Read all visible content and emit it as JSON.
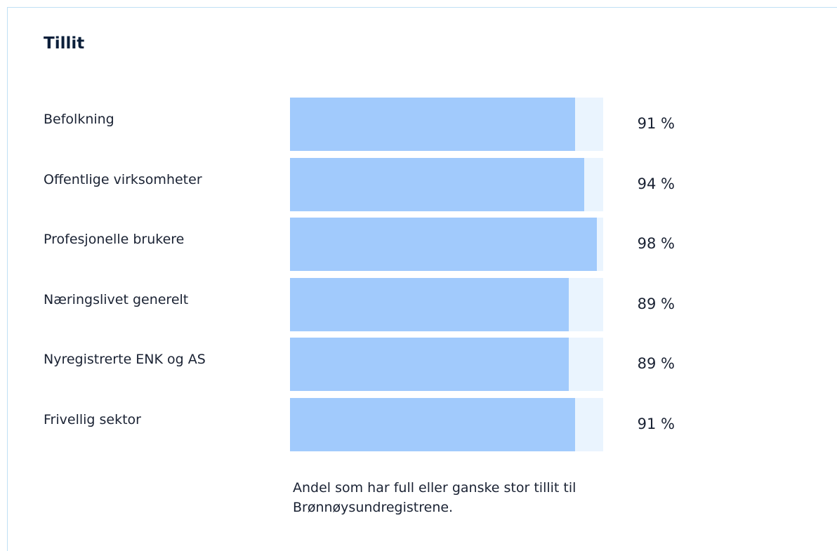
{
  "chart_data": {
    "type": "bar",
    "title": "Tillit",
    "categories": [
      "Befolkning",
      "Offentlige virksomheter",
      "Profesjonelle brukere",
      "Næringslivet generelt",
      "Nyregistrerte ENK og AS",
      "Frivellig sektor"
    ],
    "values": [
      91,
      94,
      98,
      89,
      89,
      91
    ],
    "value_labels": [
      "91 %",
      "94 %",
      "98 %",
      "89 %",
      "89 %",
      "91 %"
    ],
    "xlim": [
      0,
      100
    ],
    "color": "#a1cafc",
    "note": "Andel som har full eller ganske stor tillit til Brønnøysundregistrene."
  }
}
